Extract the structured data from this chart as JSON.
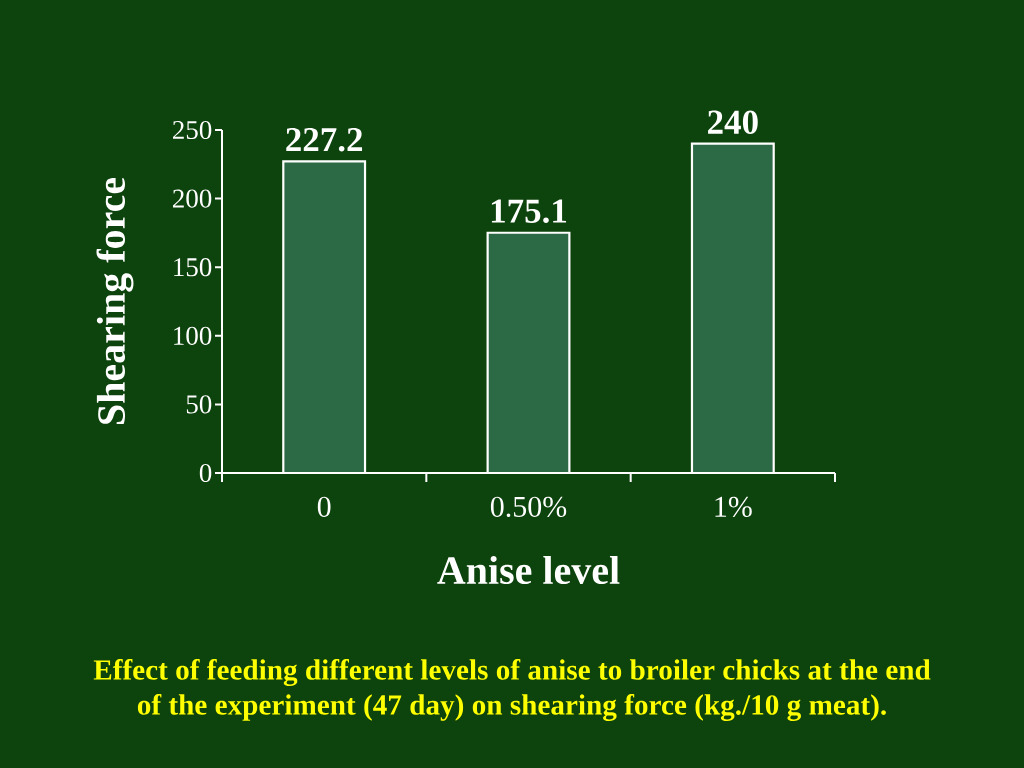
{
  "chart_data": {
    "type": "bar",
    "categories": [
      "0",
      "0.50%",
      "1%"
    ],
    "values": [
      227.2,
      175.1,
      240
    ],
    "color": "#2b6a44",
    "xlabel": "Anise level",
    "ylabel": "Shearing force",
    "ylim": [
      0,
      250
    ],
    "yticks": [
      0,
      50,
      100,
      150,
      200,
      250
    ],
    "data_labels": true,
    "annotations": [
      "Effect of feeding different levels of anise to broiler chicks at the end of the experiment (47 day) on shearing force (kg./10 g meat)."
    ]
  }
}
